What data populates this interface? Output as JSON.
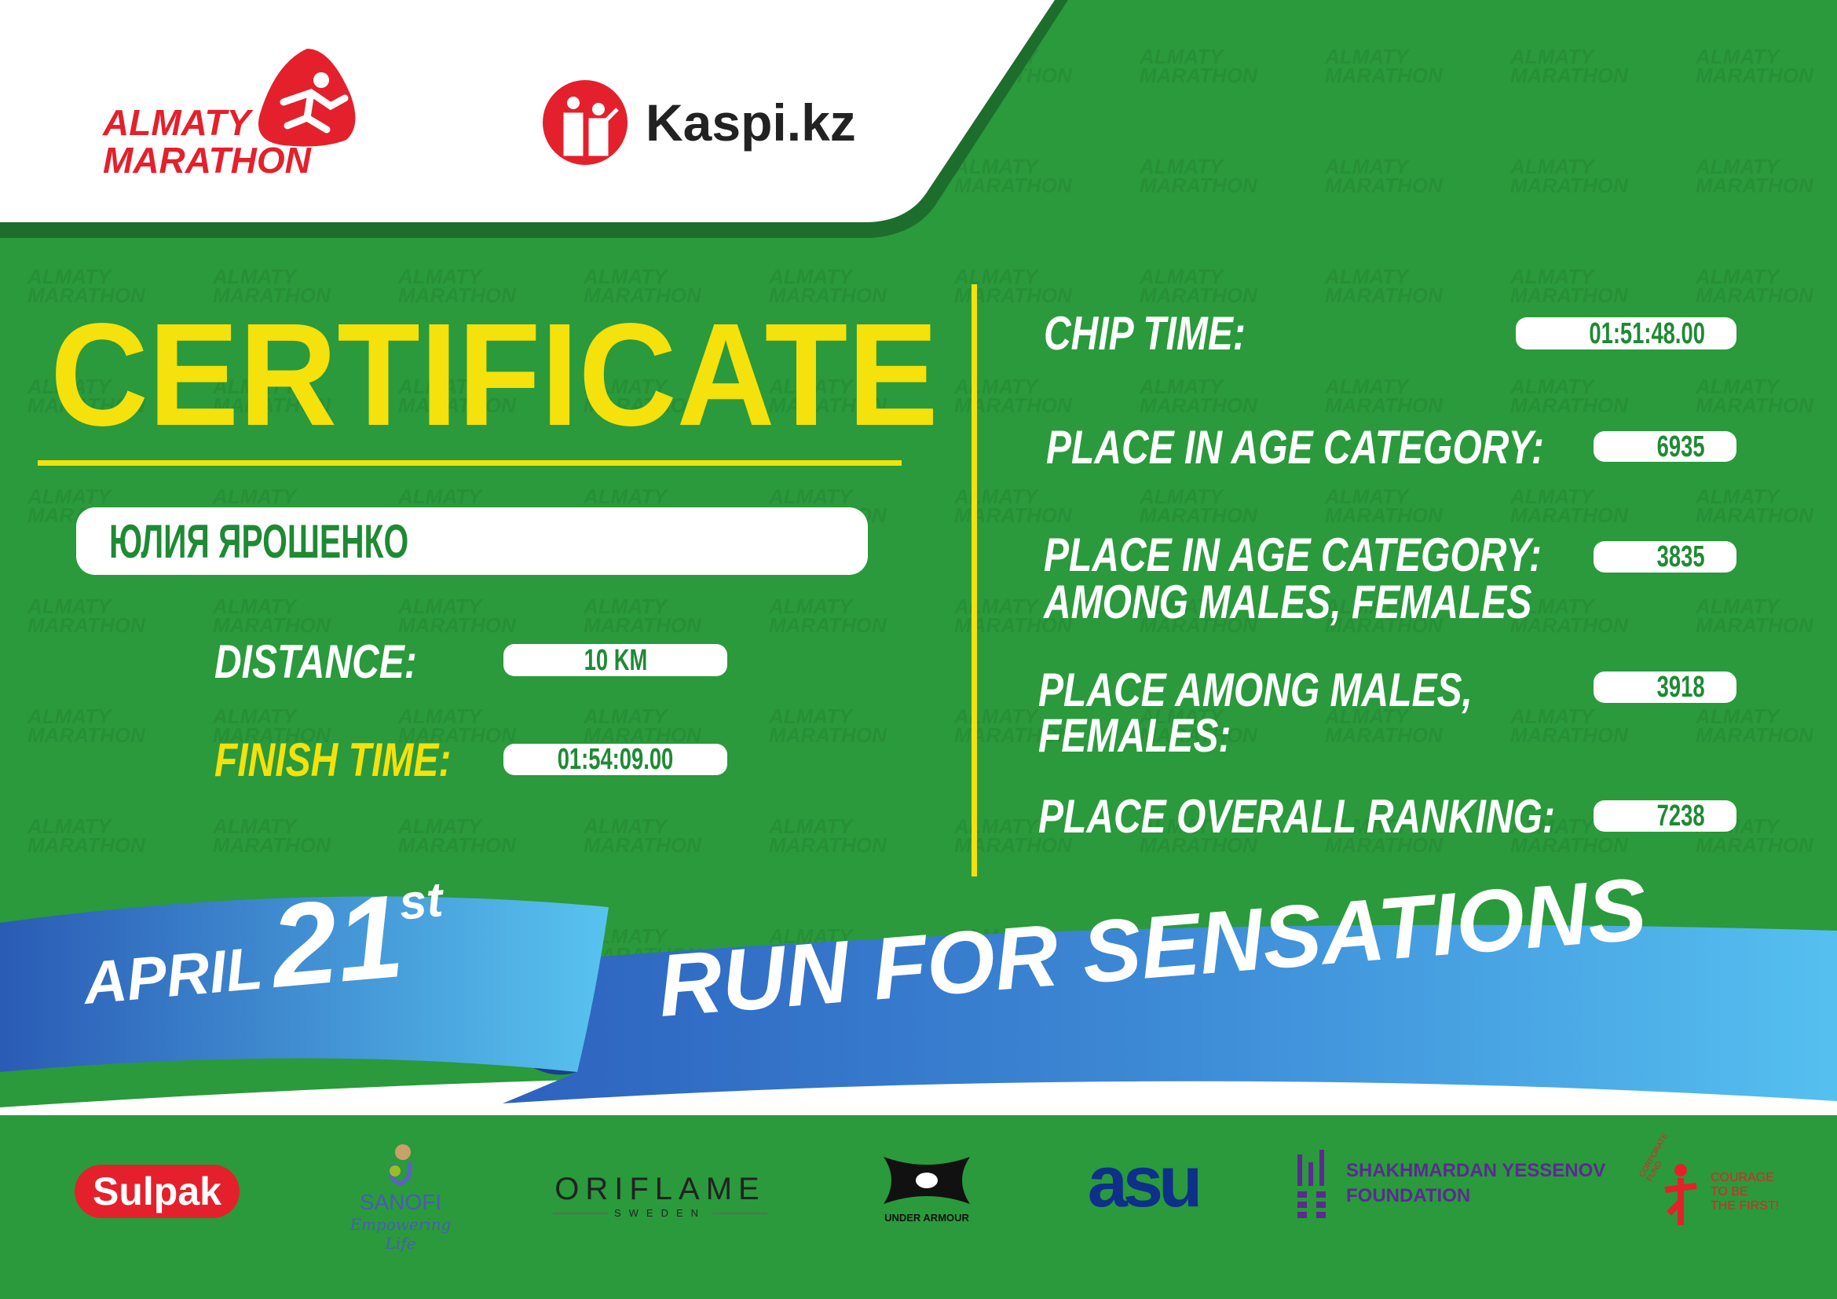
{
  "header": {
    "brand_logo_text": [
      "ALMATY",
      "MARATHON"
    ],
    "sponsor_logo_text": "Kaspi.kz"
  },
  "certificate": {
    "title": "CERTIFICATE",
    "name": "ЮЛИЯ ЯРОШЕНКО",
    "distance_label": "DISTANCE:",
    "distance_value": "10 KM",
    "finish_label": "FINISH TIME:",
    "finish_value": "01:54:09.00"
  },
  "results": [
    {
      "label": [
        "CHIP TIME:"
      ],
      "value": "01:51:48.00"
    },
    {
      "label": [
        "PLACE IN AGE CATEGORY:"
      ],
      "value": "6935"
    },
    {
      "label": [
        "PLACE IN AGE CATEGORY:",
        "AMONG MALES, FEMALES"
      ],
      "value": "3835"
    },
    {
      "label": [
        "PLACE AMONG MALES,",
        "FEMALES:"
      ],
      "value": "3918"
    },
    {
      "label": [
        "PLACE OVERALL RANKING:"
      ],
      "value": "7238"
    }
  ],
  "ribbon": {
    "month": "APRIL",
    "day": "21",
    "suffix": "st",
    "slogan": "RUN FOR SENSATIONS"
  },
  "sponsors": {
    "sulpak": "Sulpak",
    "sanofi": "SANOFI",
    "sanofi_tagline": "Empowering Life",
    "oriflame": "ORIFLAME",
    "oriflame_sub": "SWEDEN",
    "under_armour": "UNDER ARMOUR",
    "asu": "asu",
    "yessenov": [
      "SHAKHMARDAN YESSENOV",
      "FOUNDATION"
    ],
    "courage_arc": "CORPORATE FUND",
    "courage": [
      "COURAGE",
      "TO BE",
      "THE FIRST!"
    ]
  },
  "colors": {
    "green": "#2a9a3c",
    "yellow": "#f5e10c",
    "red": "#e4202c",
    "blue": "#2f6fc4"
  }
}
